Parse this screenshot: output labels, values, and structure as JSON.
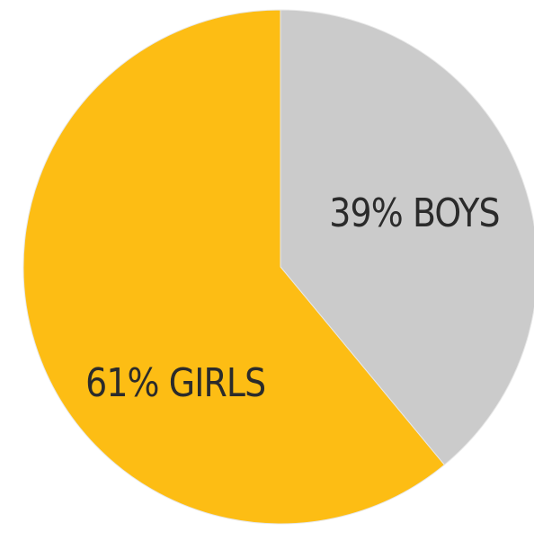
{
  "chart_data": {
    "type": "pie",
    "slices": [
      {
        "key": "boys",
        "value": 39,
        "label": "39% BOYS",
        "color": "#cbcbcb"
      },
      {
        "key": "girls",
        "value": 61,
        "label": "61% GIRLS",
        "color": "#fdbd14"
      }
    ]
  }
}
